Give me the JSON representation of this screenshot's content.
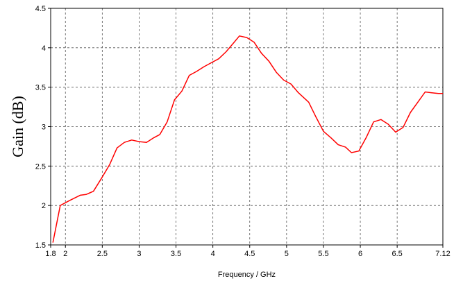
{
  "chart_data": {
    "type": "line",
    "title": "",
    "xlabel": "Frequency / GHz",
    "ylabel": "Gain (dB)",
    "xlim": [
      1.8,
      7.12
    ],
    "ylim": [
      1.5,
      4.5
    ],
    "x_ticks": [
      1.8,
      2,
      2.5,
      3,
      3.5,
      4,
      4.5,
      5,
      5.5,
      6,
      6.5,
      7.12
    ],
    "x_tick_labels": [
      "1.8",
      "2",
      "2.5",
      "3",
      "3.5",
      "4",
      "4.5",
      "5",
      "5.5",
      "6",
      "6.5",
      "7.12"
    ],
    "y_ticks": [
      1.5,
      2,
      2.5,
      3,
      3.5,
      4,
      4.5
    ],
    "y_tick_labels": [
      "1.5",
      "2",
      "2.5",
      "3",
      "3.5",
      "4",
      "4.5"
    ],
    "grid": true,
    "legend": false,
    "series": [
      {
        "color": "#ff0000",
        "x": [
          1.83,
          1.93,
          2.05,
          2.2,
          2.28,
          2.38,
          2.5,
          2.6,
          2.7,
          2.8,
          2.9,
          3.0,
          3.1,
          3.2,
          3.28,
          3.38,
          3.48,
          3.58,
          3.68,
          3.78,
          3.88,
          3.98,
          4.08,
          4.18,
          4.28,
          4.36,
          4.46,
          4.56,
          4.66,
          4.76,
          4.86,
          4.96,
          5.06,
          5.16,
          5.3,
          5.4,
          5.5,
          5.6,
          5.7,
          5.8,
          5.88,
          5.98,
          6.08,
          6.18,
          6.28,
          6.38,
          6.48,
          6.58,
          6.68,
          6.78,
          6.88,
          6.96,
          7.06,
          7.12
        ],
        "y": [
          1.53,
          2.0,
          2.06,
          2.13,
          2.14,
          2.18,
          2.36,
          2.52,
          2.73,
          2.8,
          2.83,
          2.81,
          2.8,
          2.86,
          2.9,
          3.06,
          3.34,
          3.45,
          3.65,
          3.7,
          3.76,
          3.81,
          3.86,
          3.95,
          4.06,
          4.15,
          4.13,
          4.07,
          3.93,
          3.83,
          3.69,
          3.59,
          3.54,
          3.43,
          3.31,
          3.12,
          2.94,
          2.86,
          2.77,
          2.74,
          2.67,
          2.69,
          2.86,
          3.06,
          3.09,
          3.03,
          2.93,
          2.99,
          3.18,
          3.31,
          3.44,
          3.43,
          3.42,
          3.42
        ]
      }
    ]
  }
}
